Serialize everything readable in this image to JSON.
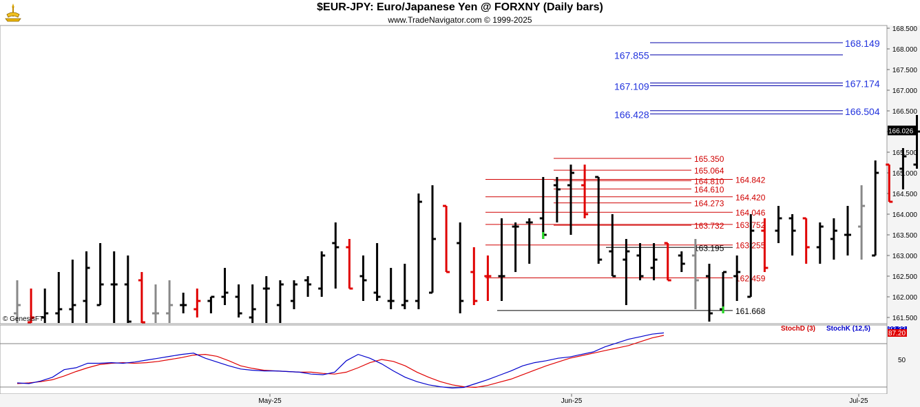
{
  "header": {
    "title": "$EUR-JPY:  Euro/Japanese Yen @ FORXNY  (Daily bars)",
    "subtitle": "www.TradeNavigator.com © 1999-2025",
    "copyright": "© GenesisFT"
  },
  "chart_data": [
    {
      "type": "ohlc",
      "title": "$EUR-JPY:  Euro/Japanese Yen @ FORXNY  (Daily bars)",
      "ylim": [
        161.3,
        168.6
      ],
      "y_ticks": [
        "168.500",
        "168.000",
        "167.500",
        "167.000",
        "166.500",
        "166.000",
        "165.500",
        "165.000",
        "164.500",
        "164.000",
        "163.500",
        "163.000",
        "162.500",
        "162.000",
        "161.500"
      ],
      "x_ticks": [
        "May-25",
        "Jun-25",
        "Jul-25"
      ],
      "last_price": "166.026",
      "bars": [
        {
          "o": 161.6,
          "h": 162.4,
          "l": 161.3,
          "c": 161.8,
          "color": "gray"
        },
        {
          "o": 161.3,
          "h": 162.2,
          "l": 161.3,
          "c": 161.5,
          "color": "red"
        },
        {
          "o": 161.5,
          "h": 162.2,
          "l": 161.3,
          "c": 161.6,
          "color": "black"
        },
        {
          "o": 161.6,
          "h": 162.6,
          "l": 161.3,
          "c": 161.7,
          "color": "black"
        },
        {
          "o": 161.7,
          "h": 162.9,
          "l": 161.3,
          "c": 161.8,
          "color": "black"
        },
        {
          "o": 161.9,
          "h": 163.1,
          "l": 161.3,
          "c": 162.7,
          "color": "black"
        },
        {
          "o": 161.8,
          "h": 163.3,
          "l": 161.8,
          "c": 162.3,
          "color": "black"
        },
        {
          "o": 162.3,
          "h": 163.1,
          "l": 161.3,
          "c": 162.3,
          "color": "black"
        },
        {
          "o": 162.3,
          "h": 163.0,
          "l": 161.3,
          "c": 161.4,
          "color": "black"
        },
        {
          "o": 162.4,
          "h": 162.6,
          "l": 161.3,
          "c": 161.3,
          "color": "red"
        },
        {
          "o": 161.6,
          "h": 162.3,
          "l": 161.3,
          "c": 161.6,
          "color": "gray"
        },
        {
          "o": 161.6,
          "h": 162.4,
          "l": 161.3,
          "c": 161.8,
          "color": "gray"
        },
        {
          "o": 161.8,
          "h": 162.1,
          "l": 161.6,
          "c": 161.8,
          "color": "black"
        },
        {
          "o": 161.7,
          "h": 162.2,
          "l": 161.5,
          "c": 161.9,
          "color": "red"
        },
        {
          "o": 161.9,
          "h": 162.0,
          "l": 161.6,
          "c": 162.0,
          "color": "black"
        },
        {
          "o": 162.0,
          "h": 162.7,
          "l": 161.8,
          "c": 162.1,
          "color": "black"
        },
        {
          "o": 162.0,
          "h": 162.3,
          "l": 161.5,
          "c": 161.6,
          "color": "black"
        },
        {
          "o": 161.5,
          "h": 162.3,
          "l": 161.3,
          "c": 161.7,
          "color": "black"
        },
        {
          "o": 162.2,
          "h": 162.5,
          "l": 161.3,
          "c": 162.2,
          "color": "black"
        },
        {
          "o": 161.8,
          "h": 162.4,
          "l": 161.3,
          "c": 162.3,
          "color": "black"
        },
        {
          "o": 161.9,
          "h": 162.4,
          "l": 161.7,
          "c": 162.3,
          "color": "black"
        },
        {
          "o": 162.4,
          "h": 162.5,
          "l": 162.0,
          "c": 162.3,
          "color": "black"
        },
        {
          "o": 162.2,
          "h": 163.1,
          "l": 162.0,
          "c": 163.0,
          "color": "black"
        },
        {
          "o": 163.3,
          "h": 163.8,
          "l": 162.2,
          "c": 163.2,
          "color": "black"
        },
        {
          "o": 163.2,
          "h": 163.4,
          "l": 162.2,
          "c": 162.2,
          "color": "red"
        },
        {
          "o": 162.5,
          "h": 163.0,
          "l": 161.9,
          "c": 162.4,
          "color": "black"
        },
        {
          "o": 162.1,
          "h": 163.3,
          "l": 161.9,
          "c": 162.0,
          "color": "black"
        },
        {
          "o": 161.9,
          "h": 162.7,
          "l": 161.7,
          "c": 161.9,
          "color": "black"
        },
        {
          "o": 161.8,
          "h": 162.8,
          "l": 161.7,
          "c": 161.9,
          "color": "black"
        },
        {
          "o": 161.9,
          "h": 164.5,
          "l": 161.7,
          "c": 164.3,
          "color": "black"
        },
        {
          "o": 162.1,
          "h": 164.7,
          "l": 162.1,
          "c": 163.4,
          "color": "black"
        },
        {
          "o": 164.2,
          "h": 164.2,
          "l": 162.6,
          "c": 162.6,
          "color": "red"
        },
        {
          "o": 163.3,
          "h": 163.8,
          "l": 161.6,
          "c": 161.9,
          "color": "black"
        },
        {
          "o": 162.6,
          "h": 163.2,
          "l": 161.8,
          "c": 161.9,
          "color": "red"
        },
        {
          "o": 162.5,
          "h": 163.0,
          "l": 161.9,
          "c": 162.5,
          "color": "red"
        },
        {
          "o": 162.5,
          "h": 163.9,
          "l": 161.9,
          "c": 162.5,
          "color": "black"
        },
        {
          "o": 163.7,
          "h": 163.8,
          "l": 162.6,
          "c": 163.7,
          "color": "black"
        },
        {
          "o": 163.8,
          "h": 163.9,
          "l": 162.8,
          "c": 163.8,
          "color": "black"
        },
        {
          "o": 163.9,
          "h": 164.9,
          "l": 163.4,
          "c": 163.5,
          "color": "green"
        },
        {
          "o": 164.7,
          "h": 164.9,
          "l": 163.8,
          "c": 164.6,
          "color": "black"
        },
        {
          "o": 164.7,
          "h": 165.2,
          "l": 163.5,
          "c": 165.0,
          "color": "black"
        },
        {
          "o": 164.7,
          "h": 165.2,
          "l": 163.9,
          "c": 164.0,
          "color": "red"
        },
        {
          "o": 164.9,
          "h": 164.9,
          "l": 162.8,
          "c": 162.9,
          "color": "black"
        },
        {
          "o": 163.1,
          "h": 164.0,
          "l": 162.5,
          "c": 162.5,
          "color": "black"
        },
        {
          "o": 162.9,
          "h": 163.4,
          "l": 161.8,
          "c": 163.1,
          "color": "black"
        },
        {
          "o": 163.0,
          "h": 163.3,
          "l": 162.4,
          "c": 162.5,
          "color": "black"
        },
        {
          "o": 162.7,
          "h": 163.3,
          "l": 162.4,
          "c": 162.9,
          "color": "black"
        },
        {
          "o": 163.3,
          "h": 163.3,
          "l": 162.4,
          "c": 162.4,
          "color": "red"
        },
        {
          "o": 163.0,
          "h": 163.1,
          "l": 162.6,
          "c": 162.8,
          "color": "black"
        },
        {
          "o": 163.0,
          "h": 163.4,
          "l": 161.7,
          "c": 162.4,
          "color": "gray"
        },
        {
          "o": 162.5,
          "h": 162.8,
          "l": 161.4,
          "c": 161.6,
          "color": "black"
        },
        {
          "o": 161.7,
          "h": 162.6,
          "l": 161.6,
          "c": 162.6,
          "color": "green"
        },
        {
          "o": 162.5,
          "h": 163.0,
          "l": 161.9,
          "c": 162.6,
          "color": "black"
        },
        {
          "o": 162.0,
          "h": 164.0,
          "l": 162.0,
          "c": 163.6,
          "color": "black"
        },
        {
          "o": 163.6,
          "h": 163.9,
          "l": 162.6,
          "c": 162.7,
          "color": "red"
        },
        {
          "o": 163.6,
          "h": 164.2,
          "l": 163.3,
          "c": 163.9,
          "color": "black"
        },
        {
          "o": 163.9,
          "h": 164.0,
          "l": 163.0,
          "c": 163.6,
          "color": "black"
        },
        {
          "o": 163.9,
          "h": 163.9,
          "l": 162.8,
          "c": 163.2,
          "color": "red"
        },
        {
          "o": 163.2,
          "h": 163.8,
          "l": 162.8,
          "c": 163.7,
          "color": "black"
        },
        {
          "o": 163.4,
          "h": 163.9,
          "l": 162.9,
          "c": 163.6,
          "color": "black"
        },
        {
          "o": 163.5,
          "h": 164.2,
          "l": 163.0,
          "c": 163.5,
          "color": "black"
        },
        {
          "o": 163.7,
          "h": 164.7,
          "l": 162.9,
          "c": 164.2,
          "color": "gray"
        },
        {
          "o": 163.0,
          "h": 165.3,
          "l": 163.0,
          "c": 165.0,
          "color": "black"
        },
        {
          "o": 165.2,
          "h": 165.2,
          "l": 164.3,
          "c": 164.3,
          "color": "red"
        },
        {
          "o": 165.1,
          "h": 165.6,
          "l": 164.6,
          "c": 165.4,
          "color": "black"
        },
        {
          "o": 165.2,
          "h": 166.4,
          "l": 165.1,
          "c": 166.0,
          "color": "black"
        }
      ],
      "levels_black": [
        {
          "value": 161.668,
          "label": "161.668"
        },
        {
          "value": 163.195,
          "label": "163.195"
        }
      ],
      "levels_red": [
        {
          "value": 165.35,
          "label": "165.350",
          "side": "left"
        },
        {
          "value": 165.064,
          "label": "165.064",
          "side": "left"
        },
        {
          "value": 164.81,
          "label": "164.810",
          "side": "left"
        },
        {
          "value": 164.842,
          "label": "164.842",
          "side": "right"
        },
        {
          "value": 164.61,
          "label": "164.610",
          "side": "left"
        },
        {
          "value": 164.42,
          "label": "164.420",
          "side": "right"
        },
        {
          "value": 164.273,
          "label": "164.273",
          "side": "left"
        },
        {
          "value": 164.046,
          "label": "164.046",
          "side": "right"
        },
        {
          "value": 163.732,
          "label": "163.732",
          "side": "left"
        },
        {
          "value": 163.752,
          "label": "163.752",
          "side": "right"
        },
        {
          "value": 163.255,
          "label": "163.255",
          "side": "right"
        },
        {
          "value": 162.459,
          "label": "162.459",
          "side": "right"
        }
      ],
      "levels_blue": [
        {
          "value": 168.149,
          "label": "168.149",
          "side": "right"
        },
        {
          "value": 167.855,
          "label": "167.855",
          "side": "left"
        },
        {
          "value": 167.109,
          "label": "167.109",
          "side": "left"
        },
        {
          "value": 167.174,
          "label": "167.174",
          "side": "right"
        },
        {
          "value": 166.428,
          "label": "166.428",
          "side": "left"
        },
        {
          "value": 166.504,
          "label": "166.504",
          "side": "right"
        }
      ]
    },
    {
      "type": "line",
      "title": "",
      "ylim": [
        0,
        100
      ],
      "y_ticks": [
        "50"
      ],
      "value_badges": [
        "92.32",
        "87.20"
      ],
      "series": [
        {
          "name": "StochD (3)",
          "color": "#e00000",
          "values": [
            12,
            13,
            15,
            18,
            24,
            31,
            37,
            42,
            44,
            45,
            44,
            45,
            47,
            50,
            53,
            57,
            58,
            55,
            48,
            40,
            36,
            33,
            32,
            31,
            30,
            30,
            28,
            27,
            30,
            37,
            45,
            50,
            47,
            40,
            30,
            22,
            15,
            10,
            7,
            6,
            9,
            14,
            19,
            26,
            33,
            40,
            46,
            52,
            56,
            60,
            64,
            68,
            72,
            78,
            84,
            88
          ]
        },
        {
          "name": "StochK (12,5)",
          "color": "#0000cc",
          "values": [
            13,
            12,
            16,
            22,
            34,
            37,
            44,
            44,
            45,
            44,
            46,
            49,
            52,
            55,
            58,
            60,
            52,
            46,
            40,
            35,
            33,
            32,
            32,
            31,
            30,
            27,
            26,
            30,
            48,
            58,
            52,
            43,
            32,
            22,
            15,
            10,
            7,
            5,
            6,
            12,
            18,
            25,
            32,
            40,
            45,
            48,
            52,
            54,
            58,
            62,
            70,
            76,
            82,
            86,
            90,
            92
          ]
        }
      ]
    }
  ]
}
